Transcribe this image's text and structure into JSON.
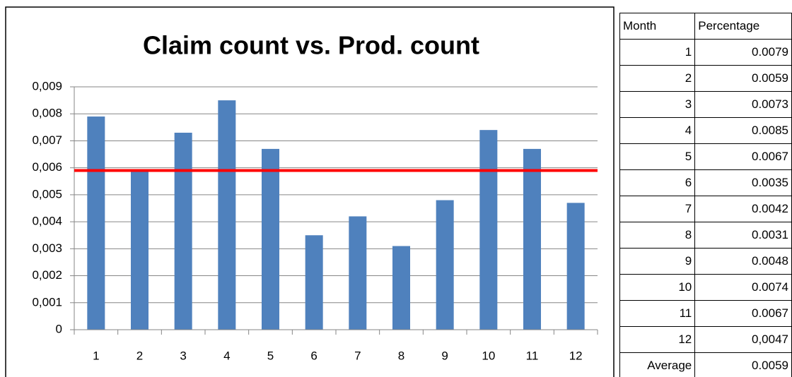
{
  "chart_data": {
    "type": "bar",
    "title": "Claim count vs. Prod. count",
    "categories": [
      "1",
      "2",
      "3",
      "4",
      "5",
      "6",
      "7",
      "8",
      "9",
      "10",
      "11",
      "12"
    ],
    "values": [
      0.0079,
      0.0059,
      0.0073,
      0.0085,
      0.0067,
      0.0035,
      0.0042,
      0.0031,
      0.0048,
      0.0074,
      0.0067,
      0.0047
    ],
    "color": "#4f81bd",
    "average": {
      "value": 0.0059,
      "color": "#ff0000"
    },
    "ylim": [
      0,
      0.009
    ],
    "yticks": [
      0,
      {
        "value": 0.001,
        "label": "0,001"
      },
      {
        "value": 0.002,
        "label": "0,002"
      },
      {
        "value": 0.003,
        "label": "0,003"
      },
      {
        "value": 0.004,
        "label": "0,004"
      },
      {
        "value": 0.005,
        "label": "0,005"
      },
      {
        "value": 0.006,
        "label": "0,006"
      },
      {
        "value": 0.007,
        "label": "0,007"
      },
      {
        "value": 0.008,
        "label": "0,008"
      },
      {
        "value": 0.009,
        "label": "0,009"
      }
    ],
    "grid": true
  },
  "table": {
    "header": [
      "Month",
      "Percentage"
    ],
    "rows": [
      [
        "1",
        "0.0079"
      ],
      [
        "2",
        "0.0059"
      ],
      [
        "3",
        "0.0073"
      ],
      [
        "4",
        "0.0085"
      ],
      [
        "5",
        "0.0067"
      ],
      [
        "6",
        "0.0035"
      ],
      [
        "7",
        "0.0042"
      ],
      [
        "8",
        "0.0031"
      ],
      [
        "9",
        "0.0048"
      ],
      [
        "10",
        "0.0074"
      ],
      [
        "11",
        "0.0067"
      ],
      [
        "12",
        "0,0047"
      ],
      [
        "Average",
        "0.0059"
      ]
    ]
  }
}
